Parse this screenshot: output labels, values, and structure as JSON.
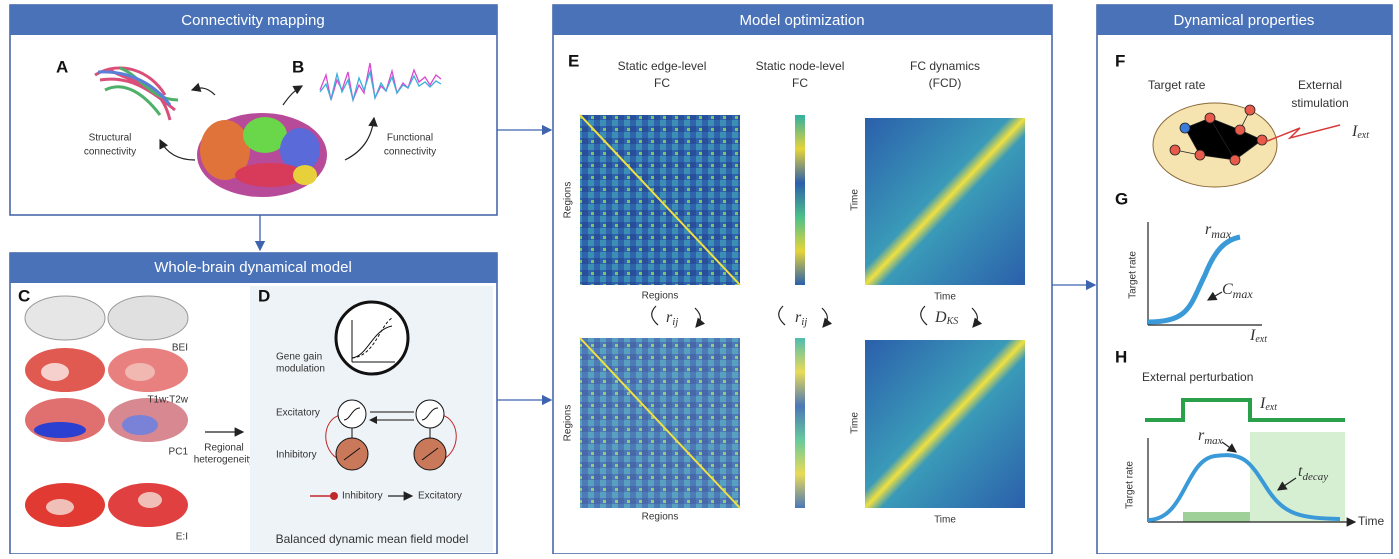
{
  "connectivity_mapping": {
    "title": "Connectivity mapping",
    "panel_a": "A",
    "panel_b": "B",
    "structural": [
      "Structural",
      "connectivity"
    ],
    "functional": [
      "Functional",
      "connectivity"
    ]
  },
  "whole_brain_model": {
    "title": "Whole-brain dynamical model",
    "panel_c": "C",
    "panel_d": "D",
    "maps": [
      "BEI",
      "T1w:T2w",
      "PC1",
      "E:I"
    ],
    "regional": [
      "Regional",
      "heterogeneity"
    ],
    "gene_gain": [
      "Gene gain",
      "modulation"
    ],
    "excitatory": "Excitatory",
    "inhibitory": "Inhibitory",
    "legend_inhibitory": "Inhibitory",
    "legend_excitatory": "Excitatory",
    "caption": "Balanced dynamic mean field model"
  },
  "model_optimization": {
    "title": "Model optimization",
    "panel_e": "E",
    "columns": [
      [
        "Static edge-level",
        "FC"
      ],
      [
        "Static node-level",
        "FC"
      ],
      [
        "FC dynamics",
        "(FCD)"
      ]
    ],
    "regions_axis": "Regions",
    "time_axis": "Time",
    "r_symbol": "r",
    "r_sub": "ij",
    "d_symbol": "D",
    "d_sub": "KS"
  },
  "dynamical_properties": {
    "title": "Dynamical properties",
    "panel_f": "F",
    "target_rate": "Target rate",
    "external_stimulation": [
      "External",
      "stimulation"
    ],
    "i_symbol": "I",
    "ext_sub": "ext",
    "panel_g": "G",
    "y_axis": "Target rate",
    "r_symbol": "r",
    "max_sub": "max",
    "c_symbol": "C",
    "panel_h": "H",
    "perturbation": "External perturbation",
    "t_symbol": "t",
    "decay_sub": "decay",
    "time_axis": "Time"
  }
}
